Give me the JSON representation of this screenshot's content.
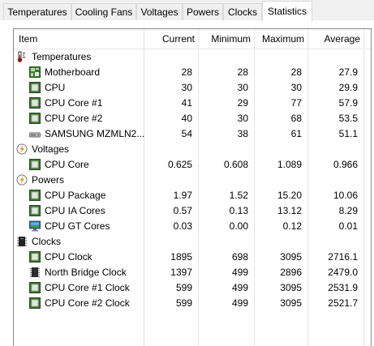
{
  "tabs": [
    {
      "label": "Temperatures"
    },
    {
      "label": "Cooling Fans"
    },
    {
      "label": "Voltages"
    },
    {
      "label": "Powers"
    },
    {
      "label": "Clocks"
    },
    {
      "label": "Statistics",
      "active": true
    }
  ],
  "columns": {
    "item": "Item",
    "current": "Current",
    "minimum": "Minimum",
    "maximum": "Maximum",
    "average": "Average"
  },
  "rows": [
    {
      "type": "group",
      "icon": "thermometer-icon",
      "label": "Temperatures"
    },
    {
      "type": "item",
      "icon": "motherboard-icon",
      "label": "Motherboard",
      "current": "28",
      "minimum": "28",
      "maximum": "28",
      "average": "27.9"
    },
    {
      "type": "item",
      "icon": "cpu-chip-icon",
      "label": "CPU",
      "current": "30",
      "minimum": "30",
      "maximum": "30",
      "average": "29.9"
    },
    {
      "type": "item",
      "icon": "cpu-chip-icon",
      "label": "CPU Core #1",
      "current": "41",
      "minimum": "29",
      "maximum": "77",
      "average": "57.9"
    },
    {
      "type": "item",
      "icon": "cpu-chip-icon",
      "label": "CPU Core #2",
      "current": "40",
      "minimum": "30",
      "maximum": "68",
      "average": "53.5"
    },
    {
      "type": "item",
      "icon": "drive-icon",
      "label": "SAMSUNG MZMLN2...",
      "current": "54",
      "minimum": "38",
      "maximum": "61",
      "average": "51.1"
    },
    {
      "type": "group",
      "icon": "lightning-icon",
      "label": "Voltages"
    },
    {
      "type": "item",
      "icon": "cpu-chip-icon",
      "label": "CPU Core",
      "current": "0.625",
      "minimum": "0.608",
      "maximum": "1.089",
      "average": "0.966"
    },
    {
      "type": "group",
      "icon": "lightning-icon",
      "label": "Powers"
    },
    {
      "type": "item",
      "icon": "cpu-chip-icon",
      "label": "CPU Package",
      "current": "1.97",
      "minimum": "1.52",
      "maximum": "15.20",
      "average": "10.06"
    },
    {
      "type": "item",
      "icon": "cpu-chip-icon",
      "label": "CPU IA Cores",
      "current": "0.57",
      "minimum": "0.13",
      "maximum": "13.12",
      "average": "8.29"
    },
    {
      "type": "item",
      "icon": "monitor-icon",
      "label": "CPU GT Cores",
      "current": "0.03",
      "minimum": "0.00",
      "maximum": "0.12",
      "average": "0.01"
    },
    {
      "type": "group",
      "icon": "clock-chip-icon",
      "label": "Clocks"
    },
    {
      "type": "item",
      "icon": "cpu-chip-icon",
      "label": "CPU Clock",
      "current": "1895",
      "minimum": "698",
      "maximum": "3095",
      "average": "2716.1"
    },
    {
      "type": "item",
      "icon": "chipset-icon",
      "label": "North Bridge Clock",
      "current": "1397",
      "minimum": "499",
      "maximum": "2896",
      "average": "2479.0"
    },
    {
      "type": "item",
      "icon": "cpu-chip-icon",
      "label": "CPU Core #1 Clock",
      "current": "599",
      "minimum": "499",
      "maximum": "3095",
      "average": "2531.9"
    },
    {
      "type": "item",
      "icon": "cpu-chip-icon",
      "label": "CPU Core #2 Clock",
      "current": "599",
      "minimum": "499",
      "maximum": "3095",
      "average": "2521.7"
    }
  ]
}
